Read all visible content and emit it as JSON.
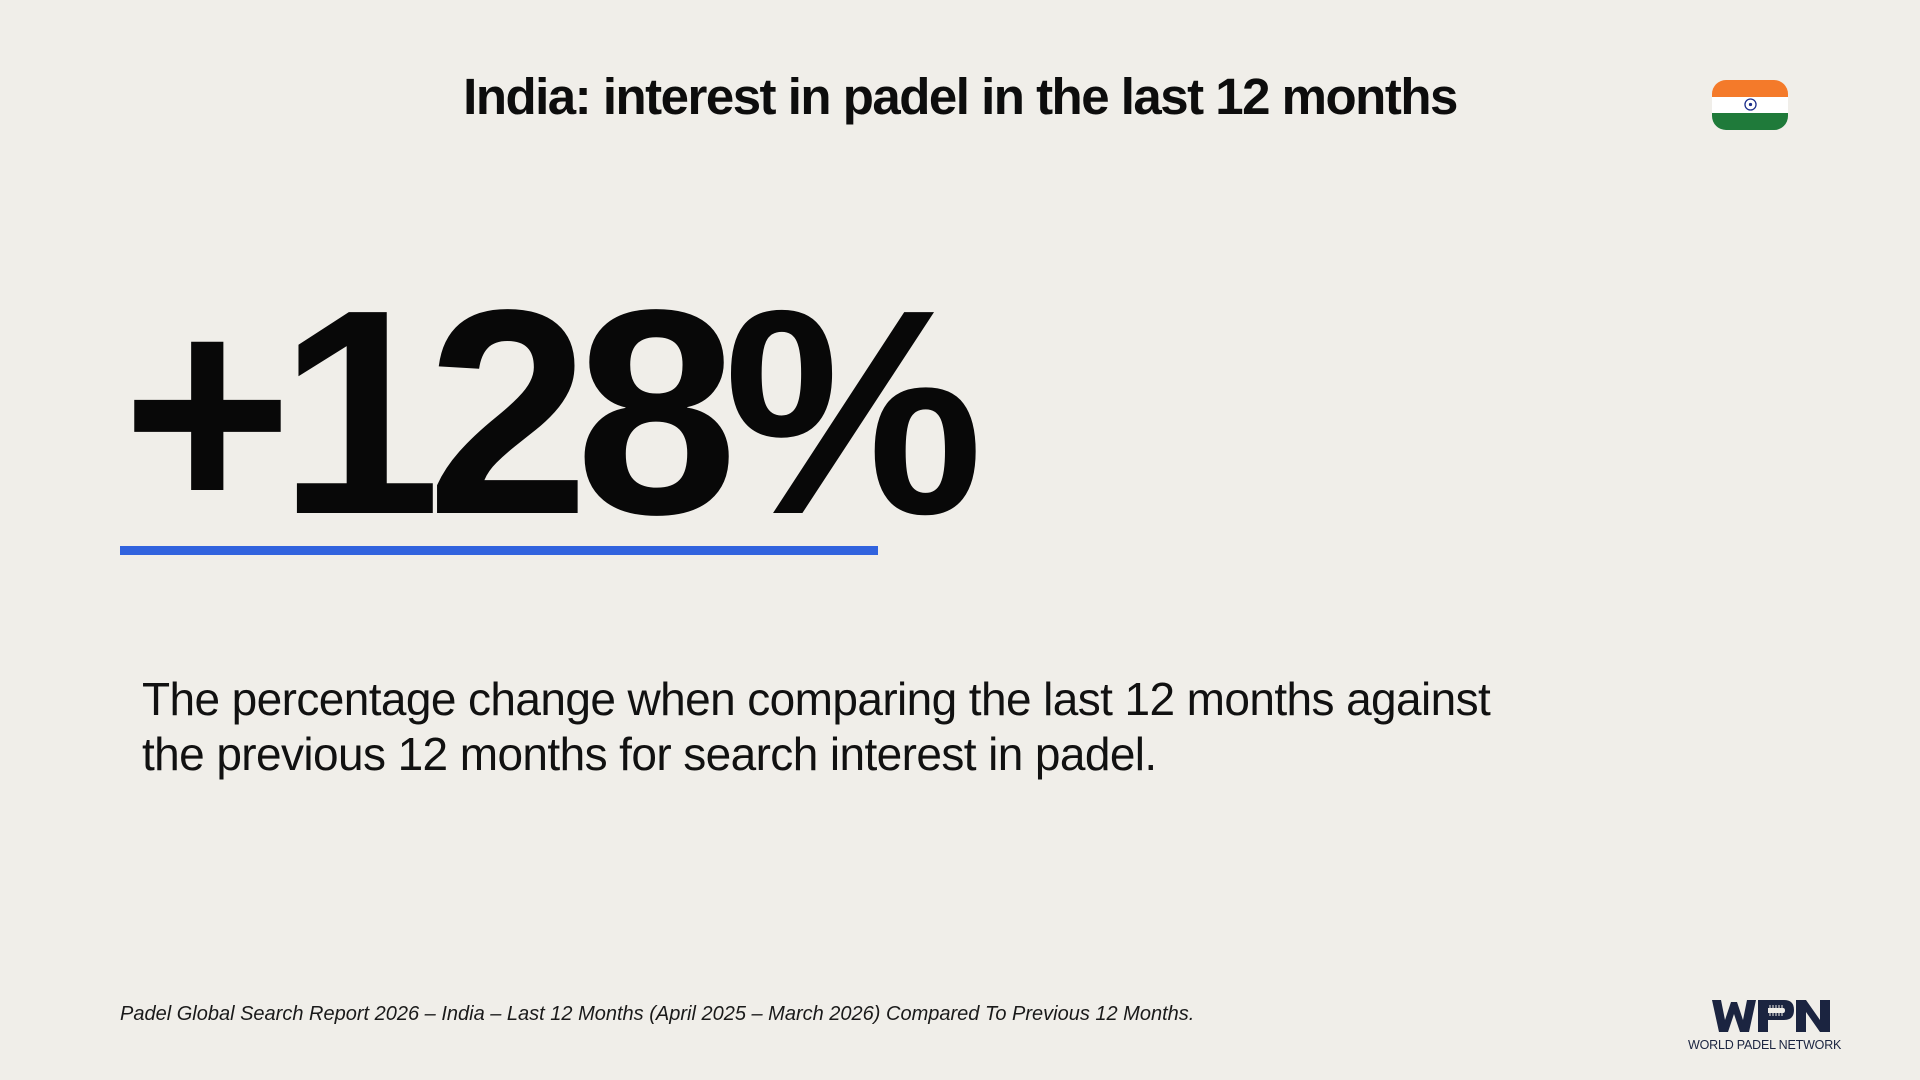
{
  "title": "India: interest in padel in the last 12 months",
  "flag": {
    "country": "India",
    "icon": "india-flag-icon",
    "colors": {
      "saffron": "#f47a2a",
      "white": "#ffffff",
      "green": "#1f7a3a",
      "chakra": "#1d2f8c"
    }
  },
  "stat": {
    "value": "+128%",
    "underline_color": "#3163de"
  },
  "description": "The percentage change when comparing the last 12 months against the previous 12 months for search interest in padel.",
  "source": "Padel Global Search Report 2026 – India – Last 12 Months (April 2025 – March 2026) Compared To Previous 12 Months.",
  "logo": {
    "mark": "WPN",
    "tagline": "WORLD PADEL NETWORK",
    "color": "#1b2440"
  }
}
